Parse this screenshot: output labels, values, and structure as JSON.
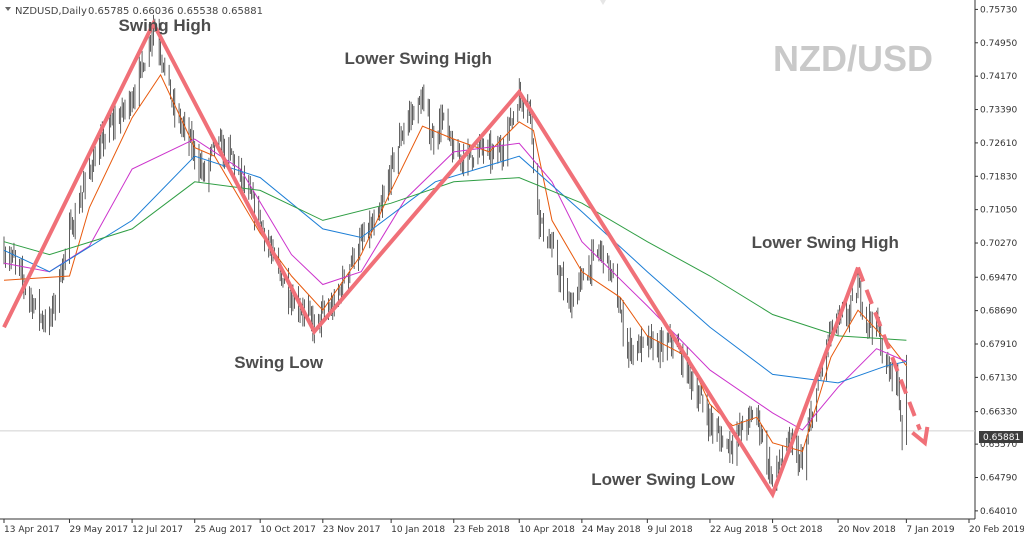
{
  "chart_info": {
    "symbol_line": "NZDUSD,Daily",
    "ohlc_line": "0.65785 0.66036 0.65538 0.65881"
  },
  "watermark": "NZD/USD",
  "current_price_label": "0.65881",
  "chart_data": {
    "type": "line",
    "title": "",
    "y_ticks": [
      "0.75730",
      "0.74950",
      "0.74170",
      "0.73390",
      "0.72610",
      "0.71830",
      "0.71050",
      "0.70270",
      "0.69470",
      "0.68690",
      "0.67910",
      "0.67130",
      "0.66330",
      "0.65570",
      "0.64790",
      "0.64010"
    ],
    "x_ticks": [
      "13 Apr 2017",
      "29 May 2017",
      "12 Jul 2017",
      "25 Aug 2017",
      "10 Oct 2017",
      "23 Nov 2017",
      "10 Jan 2018",
      "23 Feb 2018",
      "10 Apr 2018",
      "24 May 2018",
      "9 Jul 2018",
      "22 Aug 2018",
      "5 Oct 2018",
      "20 Nov 2018",
      "7 Jan 2019",
      "20 Feb 2019"
    ],
    "ylim": [
      0.6382,
      0.7595
    ],
    "current_price": 0.65881,
    "price_anchors": [
      [
        "13 Apr 2017",
        0.701
      ],
      [
        "20 Apr 2017",
        0.6985
      ],
      [
        "1 May 2017",
        0.69
      ],
      [
        "10 May 2017",
        0.685
      ],
      [
        "15 May 2017",
        0.684
      ],
      [
        "29 May 2017",
        0.705
      ],
      [
        "12 Jun 2017",
        0.72
      ],
      [
        "26 Jun 2017",
        0.73
      ],
      [
        "5 Jul 2017",
        0.733
      ],
      [
        "12 Jul 2017",
        0.737
      ],
      [
        "20 Jul 2017",
        0.745
      ],
      [
        "27 Jul 2017",
        0.754
      ],
      [
        "3 Aug 2017",
        0.745
      ],
      [
        "10 Aug 2017",
        0.734
      ],
      [
        "25 Aug 2017",
        0.724
      ],
      [
        "1 Sep 2017",
        0.718
      ],
      [
        "8 Sep 2017",
        0.726
      ],
      [
        "20 Sep 2017",
        0.723
      ],
      [
        "26 Sep 2017",
        0.718
      ],
      [
        "10 Oct 2017",
        0.708
      ],
      [
        "20 Oct 2017",
        0.698
      ],
      [
        "1 Nov 2017",
        0.69
      ],
      [
        "10 Nov 2017",
        0.687
      ],
      [
        "17 Nov 2017",
        0.683
      ],
      [
        "23 Nov 2017",
        0.686
      ],
      [
        "1 Dec 2017",
        0.688
      ],
      [
        "12 Dec 2017",
        0.698
      ],
      [
        "20 Dec 2017",
        0.703
      ],
      [
        "1 Jan 2018",
        0.708
      ],
      [
        "10 Jan 2018",
        0.72
      ],
      [
        "20 Jan 2018",
        0.731
      ],
      [
        "1 Feb 2018",
        0.736
      ],
      [
        "8 Feb 2018",
        0.727
      ],
      [
        "15 Feb 2018",
        0.732
      ],
      [
        "23 Feb 2018",
        0.723
      ],
      [
        "6 Mar 2018",
        0.723
      ],
      [
        "15 Mar 2018",
        0.725
      ],
      [
        "22 Mar 2018",
        0.723
      ],
      [
        "29 Mar 2018",
        0.725
      ],
      [
        "10 Apr 2018",
        0.737
      ],
      [
        "17 Apr 2018",
        0.735
      ],
      [
        "24 Apr 2018",
        0.708
      ],
      [
        "3 May 2018",
        0.701
      ],
      [
        "15 May 2018",
        0.688
      ],
      [
        "24 May 2018",
        0.694
      ],
      [
        "1 Jun 2018",
        0.699
      ],
      [
        "7 Jun 2018",
        0.701
      ],
      [
        "15 Jun 2018",
        0.694
      ],
      [
        "25 Jun 2018",
        0.678
      ],
      [
        "9 Jul 2018",
        0.679
      ],
      [
        "19 Jul 2018",
        0.678
      ],
      [
        "27 Jul 2018",
        0.68
      ],
      [
        "7 Aug 2018",
        0.672
      ],
      [
        "22 Aug 2018",
        0.661
      ],
      [
        "31 Aug 2018",
        0.656
      ],
      [
        "7 Sep 2018",
        0.656
      ],
      [
        "17 Sep 2018",
        0.661
      ],
      [
        "24 Sep 2018",
        0.663
      ],
      [
        "1 Oct 2018",
        0.652
      ],
      [
        "5 Oct 2018",
        0.647
      ],
      [
        "12 Oct 2018",
        0.653
      ],
      [
        "19 Oct 2018",
        0.656
      ],
      [
        "26 Oct 2018",
        0.65
      ],
      [
        "1 Nov 2018",
        0.662
      ],
      [
        "8 Nov 2018",
        0.673
      ],
      [
        "15 Nov 2018",
        0.682
      ],
      [
        "20 Nov 2018",
        0.684
      ],
      [
        "27 Nov 2018",
        0.686
      ],
      [
        "4 Dec 2018",
        0.692
      ],
      [
        "10 Dec 2018",
        0.685
      ],
      [
        "17 Dec 2018",
        0.684
      ],
      [
        "24 Dec 2018",
        0.673
      ],
      [
        "31 Dec 2018",
        0.672
      ],
      [
        "4 Jan 2019",
        0.659
      ],
      [
        "7 Jan 2019",
        0.674
      ]
    ],
    "moving_averages": [
      {
        "color": "#e8590c",
        "points": [
          [
            "13 Apr 2017",
            0.694
          ],
          [
            "29 May 2017",
            0.695
          ],
          [
            "12 Jun 2017",
            0.711
          ],
          [
            "12 Jul 2017",
            0.732
          ],
          [
            "1 Aug 2017",
            0.742
          ],
          [
            "25 Aug 2017",
            0.725
          ],
          [
            "8 Sep 2017",
            0.723
          ],
          [
            "10 Oct 2017",
            0.705
          ],
          [
            "1 Nov 2017",
            0.695
          ],
          [
            "23 Nov 2017",
            0.687
          ],
          [
            "20 Dec 2017",
            0.7
          ],
          [
            "10 Jan 2018",
            0.715
          ],
          [
            "1 Feb 2018",
            0.73
          ],
          [
            "23 Feb 2018",
            0.727
          ],
          [
            "20 Mar 2018",
            0.724
          ],
          [
            "10 Apr 2018",
            0.731
          ],
          [
            "20 Apr 2018",
            0.729
          ],
          [
            "3 May 2018",
            0.708
          ],
          [
            "24 May 2018",
            0.696
          ],
          [
            "20 Jun 2018",
            0.69
          ],
          [
            "9 Jul 2018",
            0.681
          ],
          [
            "7 Aug 2018",
            0.676
          ],
          [
            "22 Aug 2018",
            0.665
          ],
          [
            "7 Sep 2018",
            0.66
          ],
          [
            "24 Sep 2018",
            0.662
          ],
          [
            "5 Oct 2018",
            0.656
          ],
          [
            "26 Oct 2018",
            0.654
          ],
          [
            "15 Nov 2018",
            0.676
          ],
          [
            "4 Dec 2018",
            0.687
          ],
          [
            "24 Dec 2018",
            0.68
          ],
          [
            "7 Jan 2019",
            0.674
          ]
        ]
      },
      {
        "color": "#cc33cc",
        "points": [
          [
            "13 Apr 2017",
            0.698
          ],
          [
            "15 May 2017",
            0.696
          ],
          [
            "12 Jun 2017",
            0.702
          ],
          [
            "12 Jul 2017",
            0.72
          ],
          [
            "25 Aug 2017",
            0.727
          ],
          [
            "26 Sep 2017",
            0.72
          ],
          [
            "1 Nov 2017",
            0.7
          ],
          [
            "23 Nov 2017",
            0.693
          ],
          [
            "20 Dec 2017",
            0.696
          ],
          [
            "20 Jan 2018",
            0.713
          ],
          [
            "23 Feb 2018",
            0.724
          ],
          [
            "10 Apr 2018",
            0.726
          ],
          [
            "3 May 2018",
            0.717
          ],
          [
            "24 May 2018",
            0.703
          ],
          [
            "9 Jul 2018",
            0.688
          ],
          [
            "22 Aug 2018",
            0.673
          ],
          [
            "5 Oct 2018",
            0.663
          ],
          [
            "26 Oct 2018",
            0.659
          ],
          [
            "20 Nov 2018",
            0.669
          ],
          [
            "17 Dec 2018",
            0.678
          ],
          [
            "7 Jan 2019",
            0.675
          ]
        ]
      },
      {
        "color": "#1c7ed6",
        "points": [
          [
            "13 Apr 2017",
            0.701
          ],
          [
            "15 May 2017",
            0.696
          ],
          [
            "12 Jul 2017",
            0.708
          ],
          [
            "25 Aug 2017",
            0.723
          ],
          [
            "10 Oct 2017",
            0.718
          ],
          [
            "23 Nov 2017",
            0.706
          ],
          [
            "20 Dec 2017",
            0.704
          ],
          [
            "10 Feb 2018",
            0.717
          ],
          [
            "10 Apr 2018",
            0.723
          ],
          [
            "24 May 2018",
            0.71
          ],
          [
            "9 Jul 2018",
            0.696
          ],
          [
            "22 Aug 2018",
            0.683
          ],
          [
            "5 Oct 2018",
            0.672
          ],
          [
            "20 Nov 2018",
            0.67
          ],
          [
            "24 Dec 2018",
            0.674
          ],
          [
            "7 Jan 2019",
            0.675
          ]
        ]
      },
      {
        "color": "#2f9e44",
        "points": [
          [
            "13 Apr 2017",
            0.703
          ],
          [
            "15 May 2017",
            0.7
          ],
          [
            "12 Jul 2017",
            0.706
          ],
          [
            "25 Aug 2017",
            0.717
          ],
          [
            "10 Oct 2017",
            0.715
          ],
          [
            "23 Nov 2017",
            0.708
          ],
          [
            "10 Jan 2018",
            0.712
          ],
          [
            "23 Feb 2018",
            0.717
          ],
          [
            "10 Apr 2018",
            0.718
          ],
          [
            "24 May 2018",
            0.712
          ],
          [
            "9 Jul 2018",
            0.703
          ],
          [
            "22 Aug 2018",
            0.695
          ],
          [
            "5 Oct 2018",
            0.686
          ],
          [
            "20 Nov 2018",
            0.681
          ],
          [
            "7 Jan 2019",
            0.68
          ]
        ]
      }
    ],
    "swing_path": [
      [
        "13 Apr 2017",
        0.683
      ],
      [
        "27 Jul 2017",
        0.754
      ],
      [
        "17 Nov 2017",
        0.682
      ],
      [
        "10 Apr 2018",
        0.738
      ],
      [
        "5 Oct 2018",
        0.644
      ],
      [
        "4 Dec 2018",
        0.697
      ]
    ],
    "projection": [
      [
        "4 Dec 2018",
        0.697
      ],
      [
        "20 Jan 2019",
        0.656
      ]
    ],
    "annotations": [
      {
        "text": "Swing High",
        "at": [
          "4 Aug 2017",
          0.7522
        ]
      },
      {
        "text": "Swing Low",
        "at": [
          "23 Oct 2017",
          0.6735
        ]
      },
      {
        "text": "Lower Swing High",
        "at": [
          "29 Jan 2018",
          0.7445
        ]
      },
      {
        "text": "Lower Swing Low",
        "at": [
          "20 Jul 2018",
          0.6462
        ]
      },
      {
        "text": "Lower Swing High",
        "at": [
          "11 Nov 2018",
          0.7015
        ]
      }
    ]
  }
}
